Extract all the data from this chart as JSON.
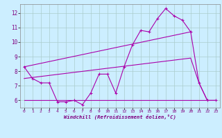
{
  "xlabel": "Windchill (Refroidissement éolien,°C)",
  "background_color": "#cceeff",
  "grid_color": "#aacccc",
  "line_color": "#aa00aa",
  "xlim": [
    -0.5,
    23.5
  ],
  "ylim": [
    5.5,
    12.6
  ],
  "yticks": [
    6,
    7,
    8,
    9,
    10,
    11,
    12
  ],
  "xticks": [
    0,
    1,
    2,
    3,
    4,
    5,
    6,
    7,
    8,
    9,
    10,
    11,
    12,
    13,
    14,
    15,
    16,
    17,
    18,
    19,
    20,
    21,
    22,
    23
  ],
  "series1_x": [
    0,
    1,
    2,
    3,
    4,
    5,
    6,
    7,
    8,
    9,
    10,
    11,
    12,
    13,
    14,
    15,
    16,
    17,
    18,
    19,
    20,
    21,
    22,
    23
  ],
  "series1_y": [
    8.3,
    7.5,
    7.2,
    7.2,
    5.9,
    5.9,
    6.0,
    5.7,
    6.5,
    7.8,
    7.8,
    6.5,
    8.3,
    9.8,
    10.8,
    10.7,
    11.6,
    12.3,
    11.8,
    11.5,
    10.7,
    7.2,
    6.0,
    6.0
  ],
  "series2_x": [
    0,
    20
  ],
  "series2_y": [
    8.3,
    10.7
  ],
  "series3_x": [
    0,
    23
  ],
  "series3_y": [
    6.0,
    6.0
  ],
  "series4_x": [
    0,
    20,
    21,
    22,
    23
  ],
  "series4_y": [
    7.5,
    8.9,
    7.2,
    6.0,
    6.0
  ]
}
